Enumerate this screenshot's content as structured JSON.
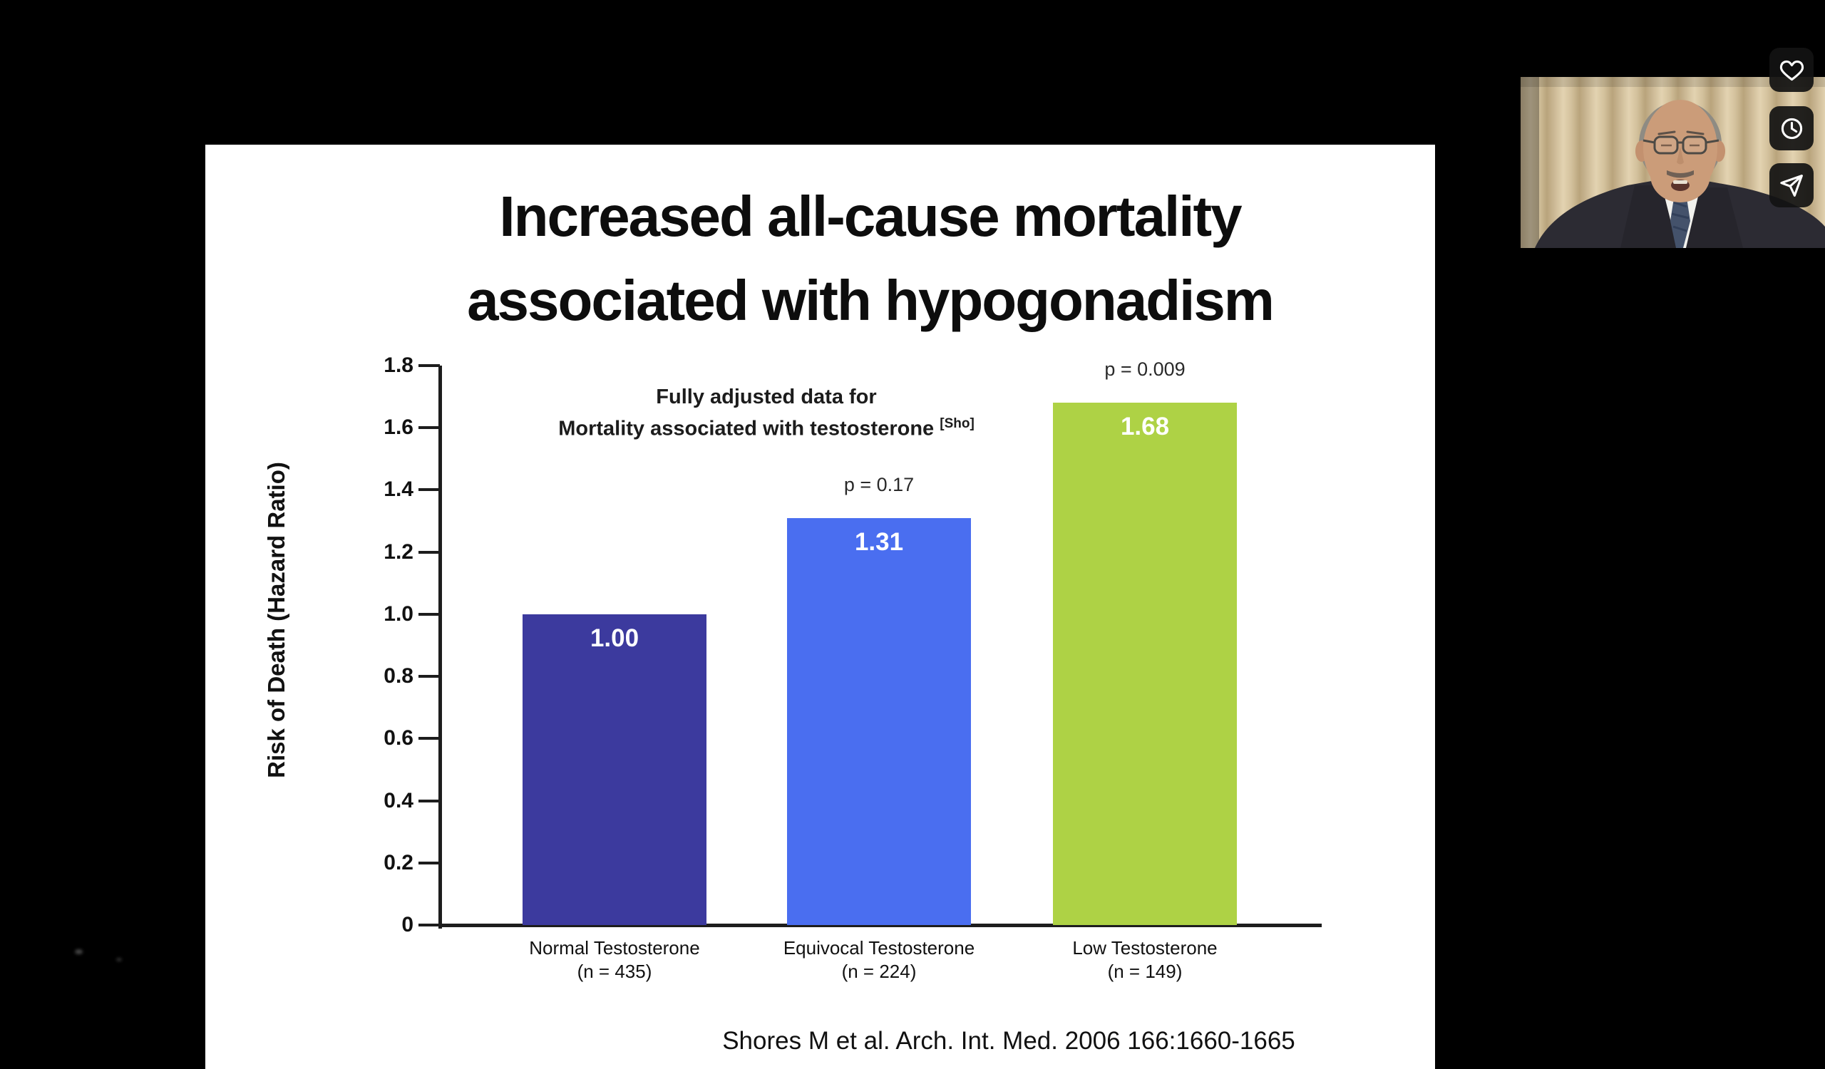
{
  "slide": {
    "title_line1": "Increased all-cause mortality",
    "title_line2": "associated with hypogonadism",
    "citation": "Shores M et al. Arch. Int. Med. 2006 166:1660-1665"
  },
  "chart_data": {
    "type": "bar",
    "ylabel": "Risk of Death (Hazard Ratio)",
    "ylim": [
      0,
      1.8
    ],
    "yticks": [
      "1.8",
      "1.6",
      "1.4",
      "1.2",
      "1.0",
      "0.8",
      "0.6",
      "0.4",
      "0.2",
      "0"
    ],
    "categories": [
      "Normal Testosterone",
      "Equivocal Testosterone",
      "Low Testosterone"
    ],
    "category_counts": [
      "(n = 435)",
      "(n = 224)",
      "(n = 149)"
    ],
    "values": [
      1.0,
      1.31,
      1.68
    ],
    "bar_labels": [
      "1.00",
      "1.31",
      "1.68"
    ],
    "p_labels": [
      "",
      "p = 0.17",
      "p = 0.009"
    ],
    "bar_colors": [
      "#3c3a9e",
      "#4a6ef0",
      "#aed245"
    ],
    "annotation": {
      "line1": "Fully adjusted data for",
      "line2": "Mortality associated with testosterone",
      "superscript": "[Sho]"
    },
    "grid": false,
    "legend": false
  },
  "side_buttons": {
    "icons": [
      "heart-icon",
      "clock-icon",
      "send-icon"
    ]
  }
}
